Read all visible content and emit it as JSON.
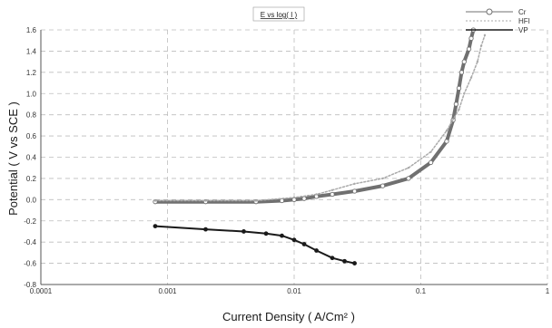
{
  "chart_data": {
    "type": "scatter",
    "title": "E vs log( I )",
    "xlabel": "Current Density ( A/Cm² )",
    "ylabel": "Potential ( V vs SCE )",
    "x_scale": "log",
    "xlim": [
      0.0001,
      1
    ],
    "ylim": [
      -0.8,
      1.6
    ],
    "x_ticks": [
      0.0001,
      0.001,
      0.01,
      0.1,
      1
    ],
    "x_tick_labels": [
      "0.0001",
      "0.001",
      "0.01",
      "0.1",
      "1"
    ],
    "y_ticks": [
      -0.8,
      -0.6,
      -0.4,
      -0.2,
      0.0,
      0.2,
      0.4,
      0.6,
      0.8,
      1.0,
      1.2,
      1.4,
      1.6
    ],
    "y_tick_labels": [
      "-0.8",
      "-0.6",
      "-0.4",
      "-0.2",
      "0.0",
      "0.2",
      "0.4",
      "0.6",
      "0.8",
      "1.0",
      "1.2",
      "1.4",
      "1.6"
    ],
    "grid": true,
    "legend_position": "top-right",
    "series": [
      {
        "name": "Cr",
        "color": "#707070",
        "marker": "circle",
        "x": [
          0.0008,
          0.002,
          0.005,
          0.008,
          0.01,
          0.012,
          0.015,
          0.02,
          0.03,
          0.05,
          0.08,
          0.12,
          0.16,
          0.18,
          0.19,
          0.2,
          0.21,
          0.22,
          0.24,
          0.25,
          0.26
        ],
        "y": [
          -0.02,
          -0.02,
          -0.02,
          -0.01,
          0.0,
          0.01,
          0.03,
          0.05,
          0.08,
          0.13,
          0.2,
          0.35,
          0.55,
          0.75,
          0.9,
          1.05,
          1.2,
          1.3,
          1.42,
          1.52,
          1.6
        ]
      },
      {
        "name": "HFI",
        "color": "#aaaaaa",
        "marker": "dot",
        "x": [
          0.0008,
          0.002,
          0.005,
          0.01,
          0.015,
          0.02,
          0.03,
          0.05,
          0.08,
          0.12,
          0.16,
          0.2,
          0.22,
          0.25,
          0.28,
          0.3,
          0.32
        ],
        "y": [
          -0.01,
          -0.01,
          -0.01,
          0.02,
          0.05,
          0.09,
          0.15,
          0.2,
          0.3,
          0.45,
          0.65,
          0.85,
          1.0,
          1.15,
          1.3,
          1.45,
          1.55
        ]
      },
      {
        "name": "VP",
        "color": "#1a1a1a",
        "marker": "line",
        "x": [
          0.0008,
          0.002,
          0.004,
          0.006,
          0.008,
          0.01,
          0.012,
          0.015,
          0.02,
          0.025,
          0.03
        ],
        "y": [
          -0.25,
          -0.28,
          -0.3,
          -0.32,
          -0.34,
          -0.38,
          -0.42,
          -0.48,
          -0.55,
          -0.58,
          -0.6
        ]
      }
    ]
  }
}
